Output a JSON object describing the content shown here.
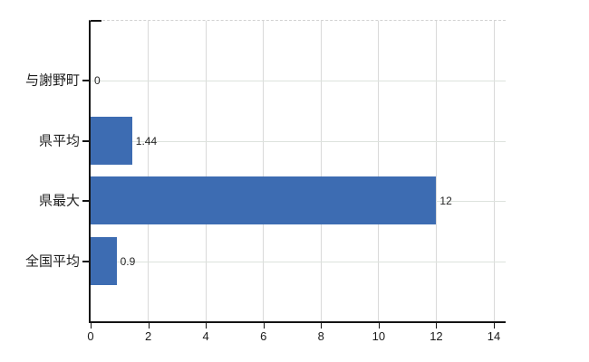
{
  "chart_data": {
    "type": "bar",
    "orientation": "horizontal",
    "title": "",
    "categories": [
      "与謝野町",
      "県平均",
      "県最大",
      "全国平均"
    ],
    "values": [
      0,
      1.44,
      12,
      0.9
    ],
    "value_labels": [
      "0",
      "1.44",
      "12",
      "0.9"
    ],
    "xlim": [
      0,
      14
    ],
    "xticks": [
      0,
      2,
      4,
      6,
      8,
      10,
      12,
      14
    ],
    "xtick_labels": [
      "0",
      "2",
      "4",
      "6",
      "8",
      "10",
      "12",
      "14"
    ],
    "xlabel": "",
    "ylabel": "",
    "legend": [],
    "grid": {
      "vertical": true,
      "horizontal_category_guides": true
    },
    "colors": {
      "bar": "#3d6cb2",
      "vertical_grid": "#d9d9d9",
      "horizontal_guide": "#dde3dd",
      "axis": "#141414",
      "text": "#262626",
      "background": "#ffffff",
      "top_border": "#d2d2d2"
    }
  }
}
